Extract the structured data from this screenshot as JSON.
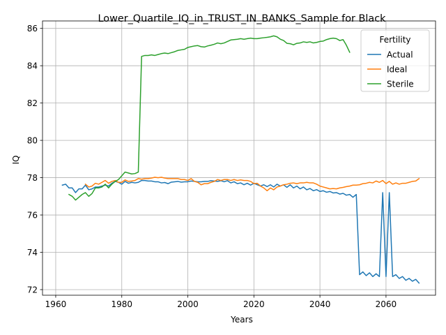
{
  "chart_data": {
    "type": "line",
    "title": "Lower_Quartile_IQ_in_TRUST_IN_BANKS_Sample for Black",
    "xlabel": "Years",
    "ylabel": "IQ",
    "xlim": [
      1956,
      2075
    ],
    "ylim": [
      71.7,
      86.4
    ],
    "xticks": [
      1960,
      1980,
      2000,
      2020,
      2040,
      2060
    ],
    "yticks": [
      72,
      74,
      76,
      78,
      80,
      82,
      84,
      86
    ],
    "grid": true,
    "legend": {
      "title": "Fertility",
      "placement": "top-right"
    },
    "series": [
      {
        "name": "Actual",
        "color": "#1f77b4",
        "x": [
          1962,
          1963,
          1964,
          1965,
          1966,
          1967,
          1968,
          1969,
          1970,
          1971,
          1972,
          1973,
          1974,
          1975,
          1976,
          1977,
          1978,
          1979,
          1980,
          1981,
          1982,
          1983,
          1984,
          1985,
          1986,
          1987,
          1988,
          1989,
          1990,
          1991,
          1992,
          1993,
          1994,
          1995,
          1996,
          1997,
          1998,
          1999,
          2000,
          2001,
          2002,
          2003,
          2004,
          2005,
          2006,
          2007,
          2008,
          2009,
          2010,
          2011,
          2012,
          2013,
          2014,
          2015,
          2016,
          2017,
          2018,
          2019,
          2020,
          2021,
          2022,
          2023,
          2024,
          2025,
          2026,
          2027,
          2028,
          2029,
          2030,
          2031,
          2032,
          2033,
          2034,
          2035,
          2036,
          2037,
          2038,
          2039,
          2040,
          2041,
          2042,
          2043,
          2044,
          2045,
          2046,
          2047,
          2048,
          2049,
          2050,
          2051,
          2052,
          2053,
          2054,
          2055,
          2056,
          2057,
          2058,
          2059,
          2060,
          2061,
          2062,
          2063,
          2064,
          2065,
          2066,
          2067,
          2068,
          2069,
          2070
        ],
        "values": [
          77.6,
          77.65,
          77.45,
          77.45,
          77.2,
          77.4,
          77.4,
          77.6,
          77.35,
          77.4,
          77.5,
          77.5,
          77.55,
          77.6,
          77.55,
          77.7,
          77.8,
          77.75,
          77.65,
          77.8,
          77.7,
          77.75,
          77.72,
          77.75,
          77.85,
          77.85,
          77.82,
          77.82,
          77.78,
          77.78,
          77.72,
          77.74,
          77.68,
          77.76,
          77.78,
          77.8,
          77.76,
          77.78,
          77.78,
          77.82,
          77.8,
          77.78,
          77.78,
          77.8,
          77.8,
          77.84,
          77.82,
          77.8,
          77.84,
          77.78,
          77.84,
          77.72,
          77.78,
          77.68,
          77.72,
          77.62,
          77.7,
          77.6,
          77.7,
          77.62,
          77.55,
          77.62,
          77.52,
          77.62,
          77.5,
          77.65,
          77.55,
          77.62,
          77.48,
          77.62,
          77.45,
          77.55,
          77.4,
          77.5,
          77.35,
          77.42,
          77.3,
          77.36,
          77.26,
          77.3,
          77.22,
          77.26,
          77.18,
          77.2,
          77.12,
          77.16,
          77.06,
          77.1,
          76.95,
          77.1,
          72.8,
          72.95,
          72.75,
          72.9,
          72.7,
          72.85,
          72.7,
          77.2,
          72.7,
          77.2,
          72.7,
          72.8,
          72.6,
          72.7,
          72.5,
          72.6,
          72.45,
          72.55,
          72.35
        ]
      },
      {
        "name": "Ideal",
        "color": "#ff7f0e",
        "x": [
          1969,
          1970,
          1971,
          1972,
          1973,
          1974,
          1975,
          1976,
          1977,
          1978,
          1979,
          1980,
          1981,
          1982,
          1983,
          1984,
          1985,
          1986,
          1987,
          1988,
          1989,
          1990,
          1991,
          1992,
          1993,
          1994,
          1995,
          1996,
          1997,
          1998,
          1999,
          2000,
          2001,
          2002,
          2003,
          2004,
          2005,
          2006,
          2007,
          2008,
          2009,
          2010,
          2011,
          2012,
          2013,
          2014,
          2015,
          2016,
          2017,
          2018,
          2019,
          2020,
          2021,
          2022,
          2023,
          2024,
          2025,
          2026,
          2027,
          2028,
          2029,
          2030,
          2031,
          2032,
          2033,
          2034,
          2035,
          2036,
          2037,
          2038,
          2039,
          2040,
          2041,
          2042,
          2043,
          2044,
          2045,
          2046,
          2047,
          2048,
          2049,
          2050,
          2051,
          2052,
          2053,
          2054,
          2055,
          2056,
          2057,
          2058,
          2059,
          2060,
          2061,
          2062,
          2063,
          2064,
          2065,
          2066,
          2067,
          2068,
          2069,
          2070
        ],
        "values": [
          77.65,
          77.5,
          77.55,
          77.7,
          77.65,
          77.75,
          77.85,
          77.7,
          77.8,
          77.85,
          77.75,
          77.75,
          77.88,
          77.8,
          77.82,
          77.85,
          77.95,
          77.92,
          77.95,
          77.95,
          77.98,
          78.02,
          78.0,
          78.02,
          77.98,
          77.95,
          77.95,
          77.95,
          77.95,
          77.9,
          77.9,
          77.85,
          77.95,
          77.8,
          77.75,
          77.62,
          77.68,
          77.68,
          77.75,
          77.8,
          77.9,
          77.85,
          77.9,
          77.9,
          77.85,
          77.9,
          77.85,
          77.88,
          77.85,
          77.85,
          77.8,
          77.68,
          77.7,
          77.55,
          77.45,
          77.3,
          77.45,
          77.35,
          77.5,
          77.55,
          77.62,
          77.65,
          77.7,
          77.72,
          77.68,
          77.72,
          77.72,
          77.75,
          77.72,
          77.72,
          77.65,
          77.55,
          77.5,
          77.45,
          77.4,
          77.42,
          77.4,
          77.45,
          77.48,
          77.52,
          77.55,
          77.6,
          77.6,
          77.62,
          77.68,
          77.7,
          77.75,
          77.72,
          77.82,
          77.75,
          77.85,
          77.68,
          77.8,
          77.65,
          77.72,
          77.65,
          77.7,
          77.7,
          77.75,
          77.8,
          77.82,
          77.95
        ]
      },
      {
        "name": "Sterile",
        "color": "#2ca02c",
        "x": [
          1964,
          1965,
          1966,
          1967,
          1968,
          1969,
          1970,
          1971,
          1972,
          1973,
          1974,
          1975,
          1976,
          1977,
          1978,
          1979,
          1980,
          1981,
          1982,
          1983,
          1984,
          1985,
          1986,
          1987,
          1988,
          1989,
          1990,
          1991,
          1992,
          1993,
          1994,
          1995,
          1996,
          1997,
          1998,
          1999,
          2000,
          2001,
          2002,
          2003,
          2004,
          2005,
          2006,
          2007,
          2008,
          2009,
          2010,
          2011,
          2012,
          2013,
          2014,
          2015,
          2016,
          2017,
          2018,
          2019,
          2020,
          2021,
          2022,
          2023,
          2024,
          2025,
          2026,
          2027,
          2028,
          2029,
          2030,
          2031,
          2032,
          2033,
          2034,
          2035,
          2036,
          2037,
          2038,
          2039,
          2040,
          2041,
          2042,
          2043,
          2044,
          2045,
          2046,
          2047,
          2048,
          2049
        ],
        "values": [
          77.1,
          77.0,
          76.8,
          76.95,
          77.1,
          77.2,
          77.0,
          77.15,
          77.45,
          77.45,
          77.5,
          77.65,
          77.45,
          77.65,
          77.8,
          77.9,
          78.1,
          78.3,
          78.25,
          78.2,
          78.22,
          78.3,
          84.5,
          84.55,
          84.55,
          84.58,
          84.55,
          84.6,
          84.65,
          84.68,
          84.65,
          84.7,
          84.75,
          84.82,
          84.85,
          84.88,
          84.98,
          85.02,
          85.06,
          85.08,
          85.02,
          85.0,
          85.06,
          85.1,
          85.15,
          85.22,
          85.18,
          85.22,
          85.3,
          85.38,
          85.4,
          85.42,
          85.45,
          85.42,
          85.45,
          85.48,
          85.45,
          85.45,
          85.48,
          85.5,
          85.52,
          85.55,
          85.6,
          85.55,
          85.42,
          85.35,
          85.2,
          85.18,
          85.12,
          85.2,
          85.22,
          85.28,
          85.25,
          85.28,
          85.22,
          85.25,
          85.3,
          85.32,
          85.4,
          85.45,
          85.48,
          85.45,
          85.35,
          85.4,
          85.1,
          84.72
        ]
      }
    ]
  }
}
